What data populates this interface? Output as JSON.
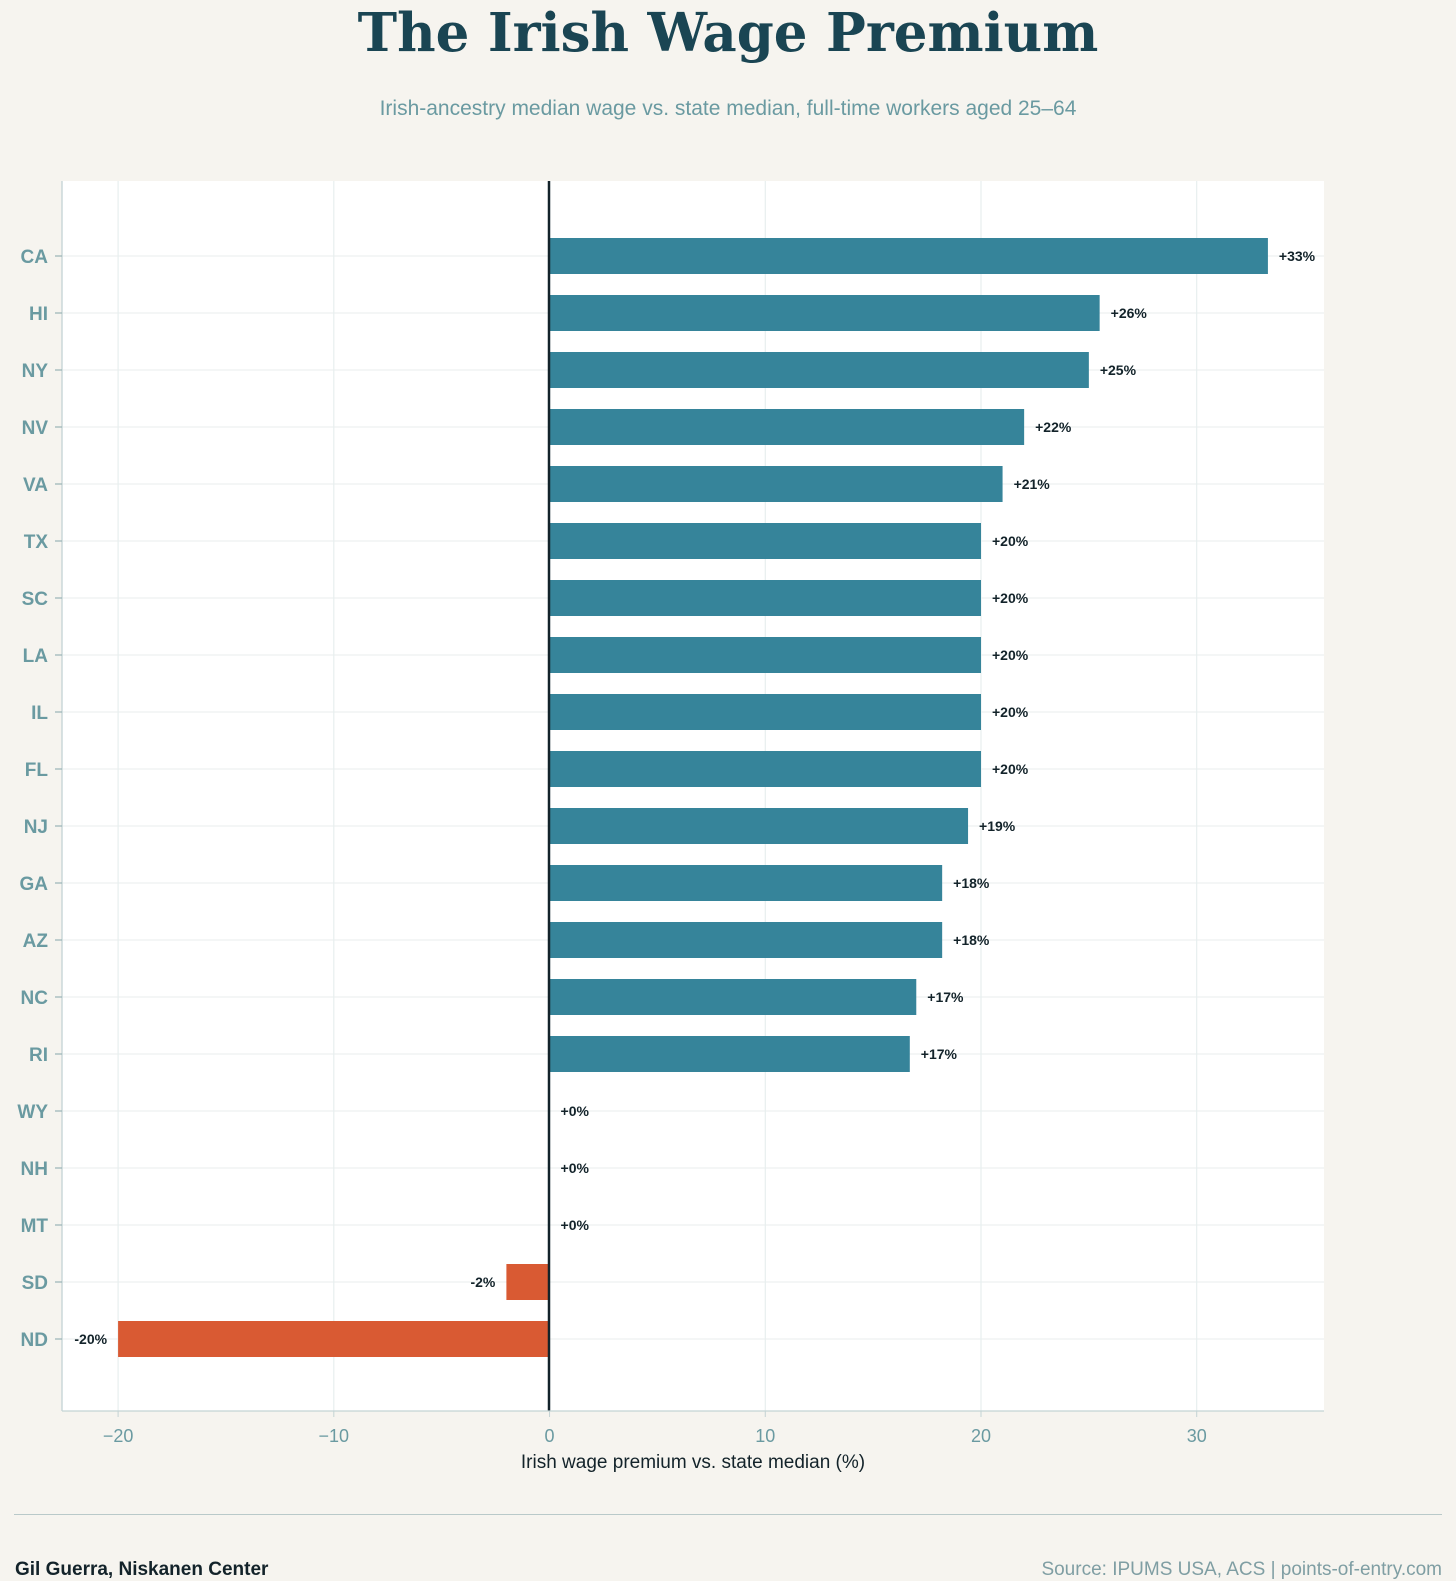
{
  "title": "The Irish Wage Premium",
  "subtitle": "Irish-ancestry median wage vs. state median, full-time workers aged 25–64",
  "footer": {
    "author": "Gil Guerra, Niskanen Center",
    "source": "Source: IPUMS USA, ACS  |  points-of-entry.com"
  },
  "colors": {
    "positive": "#36849a",
    "negative": "#d95a33",
    "zero_line": "#13232a",
    "title": "#1a4553",
    "tick_text": "#6a9aa1"
  },
  "chart_data": {
    "type": "bar",
    "orientation": "horizontal",
    "title": "The Irish Wage Premium",
    "subtitle": "Irish-ancestry median wage vs. state median, full-time workers aged 25–64",
    "xlabel": "Irish wage premium vs. state median (%)",
    "ylabel": "",
    "xlim": [
      -22.6,
      35.9
    ],
    "xticks": [
      -20,
      -10,
      0,
      10,
      20,
      30
    ],
    "xtick_labels": [
      "−20",
      "−10",
      "0",
      "10",
      "20",
      "30"
    ],
    "grid": true,
    "categories": [
      "CA",
      "HI",
      "NY",
      "NV",
      "VA",
      "TX",
      "SC",
      "LA",
      "IL",
      "FL",
      "NJ",
      "GA",
      "AZ",
      "NC",
      "RI",
      "WY",
      "NH",
      "MT",
      "SD",
      "ND"
    ],
    "values": [
      33.3,
      25.5,
      25.0,
      22.0,
      21.0,
      20.0,
      20.0,
      20.0,
      20.0,
      20.0,
      19.4,
      18.2,
      18.2,
      17.0,
      16.7,
      0,
      0,
      0,
      -2.0,
      -20.0
    ],
    "labels": [
      "+33%",
      "+26%",
      "+25%",
      "+22%",
      "+21%",
      "+20%",
      "+20%",
      "+20%",
      "+20%",
      "+20%",
      "+19%",
      "+18%",
      "+18%",
      "+17%",
      "+17%",
      "+0%",
      "+0%",
      "+0%",
      "-2%",
      "-20%"
    ]
  }
}
